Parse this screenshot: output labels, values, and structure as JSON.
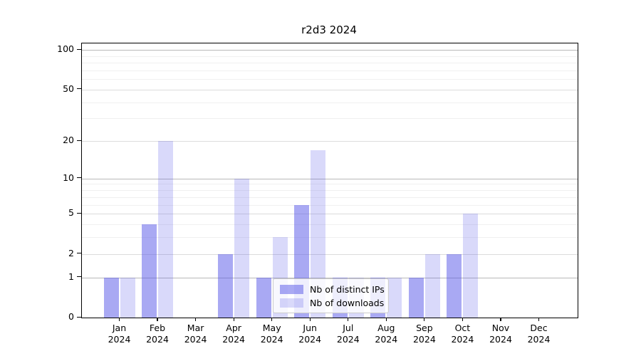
{
  "figure": {
    "title": "r2d3 2024"
  },
  "chart_data": {
    "type": "bar",
    "title": "r2d3 2024",
    "x_year_label": "2024",
    "categories": [
      "Jan",
      "Feb",
      "Mar",
      "Apr",
      "May",
      "Jun",
      "Jul",
      "Aug",
      "Sep",
      "Oct",
      "Nov",
      "Dec"
    ],
    "series": [
      {
        "name": "Nb of distinct IPs",
        "color": "rgba(84,84,232,0.5)",
        "values": [
          1,
          4,
          0,
          2,
          1,
          6,
          1,
          1,
          1,
          2,
          0,
          0
        ]
      },
      {
        "name": "Nb of downloads",
        "color": "rgba(84,84,232,0.22)",
        "values": [
          1,
          20,
          0,
          10,
          3,
          17,
          1,
          1,
          2,
          5,
          0,
          0
        ]
      }
    ],
    "y_scale": "log1p",
    "ylim": [
      0,
      112
    ],
    "y_ticks": [
      0,
      1,
      2,
      5,
      10,
      20,
      50,
      100
    ],
    "y_decade_gridlines": [
      1,
      10,
      100
    ],
    "y_secondary_gridlines": [
      2,
      5,
      20,
      50
    ],
    "y_minor_gridlines": [
      3,
      4,
      6,
      7,
      8,
      9,
      30,
      40,
      60,
      70,
      80,
      90
    ],
    "grid": "horizontal",
    "legend": {
      "position": "bottom-center-inside",
      "entries": [
        "Nb of distinct IPs",
        "Nb of downloads"
      ]
    }
  },
  "colors": {
    "decade_grid": "#b9b9b9",
    "secondary_grid": "#dcdcdc",
    "minor_grid": "#f0f0f0",
    "axis": "#000000",
    "text": "#000000",
    "legend_bg": "rgba(255,255,255,0.8)",
    "legend_border": "#cccccc"
  }
}
